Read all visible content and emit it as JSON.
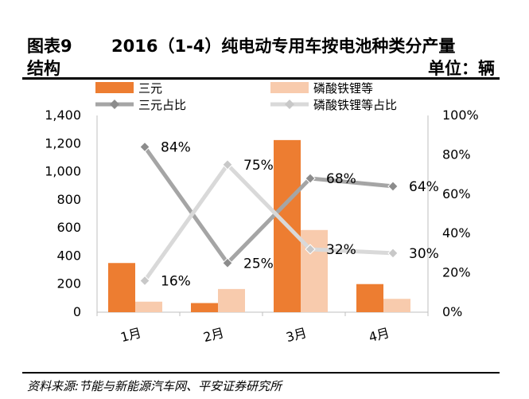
{
  "header": {
    "figure_label": "图表9",
    "title": "2016（1-4）纯电动专用车按电池种类分产量",
    "title_cont": "结构",
    "unit": "单位：辆"
  },
  "source": "资料来源:节能与新能源汽车网、平安证券研究所",
  "colors": {
    "ternary_bar": "#ED7D31",
    "lfp_bar": "#F8CBAD",
    "ternary_line": "#A5A5A5",
    "lfp_line": "#D9D9D9"
  },
  "chart_data": {
    "type": "bar",
    "categories": [
      "1月",
      "2月",
      "3月",
      "4月"
    ],
    "series": [
      {
        "name": "三元",
        "kind": "bar",
        "axis": "left",
        "values": [
          350,
          65,
          1225,
          200
        ]
      },
      {
        "name": "磷酸铁锂等",
        "kind": "bar",
        "axis": "left",
        "values": [
          75,
          165,
          585,
          95
        ]
      },
      {
        "name": "三元占比",
        "kind": "line",
        "axis": "right",
        "values": [
          84,
          25,
          68,
          64
        ],
        "labels": [
          "84%",
          "25%",
          "68%",
          "64%"
        ]
      },
      {
        "name": "磷酸铁锂等占比",
        "kind": "line",
        "axis": "right",
        "values": [
          16,
          75,
          32,
          30
        ],
        "labels": [
          "16%",
          "75%",
          "32%",
          "30%"
        ]
      }
    ],
    "y_left": {
      "min": 0,
      "max": 1400,
      "ticks": [
        0,
        200,
        400,
        600,
        800,
        1000,
        1200,
        1400
      ],
      "tick_labels": [
        "0",
        "200",
        "400",
        "600",
        "800",
        "1,000",
        "1,200",
        "1,400"
      ]
    },
    "y_right": {
      "min": 0,
      "max": 100,
      "ticks": [
        0,
        20,
        40,
        60,
        80,
        100
      ],
      "tick_labels": [
        "0%",
        "20%",
        "40%",
        "60%",
        "80%",
        "100%"
      ]
    },
    "legend": {
      "position": "top"
    },
    "grid": false
  }
}
